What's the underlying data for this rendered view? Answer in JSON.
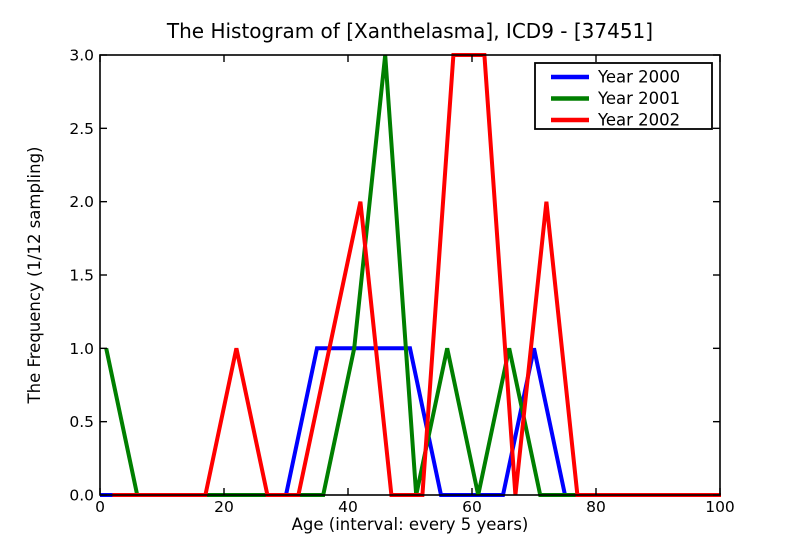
{
  "chart_data": {
    "type": "line",
    "title": "The Histogram of [Xanthelasma], ICD9 - [37451]",
    "xlabel": "Age (interval: every 5 years)",
    "ylabel": "The Frequency (1/12 sampling)",
    "xlim": [
      0,
      100
    ],
    "ylim": [
      0.0,
      3.0
    ],
    "grid": false,
    "legend_position": "upper right",
    "background_color": "#ffffff",
    "x_ticks": {
      "values": [
        0,
        20,
        40,
        60,
        80,
        100
      ],
      "labels": [
        "0",
        "20",
        "40",
        "60",
        "80",
        "100"
      ]
    },
    "y_ticks": {
      "values": [
        0,
        0.5,
        1,
        1.5,
        2,
        2.5,
        3
      ],
      "labels": [
        "0.0",
        "0.5",
        "1.0",
        "1.5",
        "2.0",
        "2.5",
        "3.0"
      ]
    },
    "series": [
      {
        "name": "Year 2000",
        "color": "#0000ff",
        "x": [
          0,
          5,
          10,
          15,
          20,
          25,
          30,
          35,
          40,
          45,
          50,
          55,
          60,
          65,
          70,
          75,
          80,
          85,
          90,
          95,
          100
        ],
        "values": [
          0,
          0,
          0,
          0,
          0,
          0,
          0,
          1,
          1,
          1,
          1,
          0,
          0,
          0,
          1,
          0,
          0,
          0,
          0,
          0,
          0
        ]
      },
      {
        "name": "Year 2001",
        "color": "#007f00",
        "x": [
          1,
          6,
          11,
          16,
          21,
          26,
          31,
          36,
          41,
          46,
          51,
          56,
          61,
          66,
          71,
          76,
          81,
          86,
          91,
          96,
          101
        ],
        "values": [
          1,
          0,
          0,
          0,
          0,
          0,
          0,
          0,
          1,
          3,
          0,
          1,
          0,
          1,
          0,
          0,
          0,
          0,
          0,
          0,
          0
        ]
      },
      {
        "name": "Year 2002",
        "color": "#ff0000",
        "x": [
          2,
          7,
          12,
          17,
          22,
          27,
          32,
          37,
          42,
          47,
          52,
          57,
          62,
          67,
          72,
          77,
          82,
          87,
          92,
          97,
          102
        ],
        "values": [
          0,
          0,
          0,
          0,
          1,
          0,
          0,
          1,
          2,
          0,
          0,
          3,
          3,
          0,
          2,
          0,
          0,
          0,
          0,
          0,
          0
        ]
      }
    ]
  }
}
